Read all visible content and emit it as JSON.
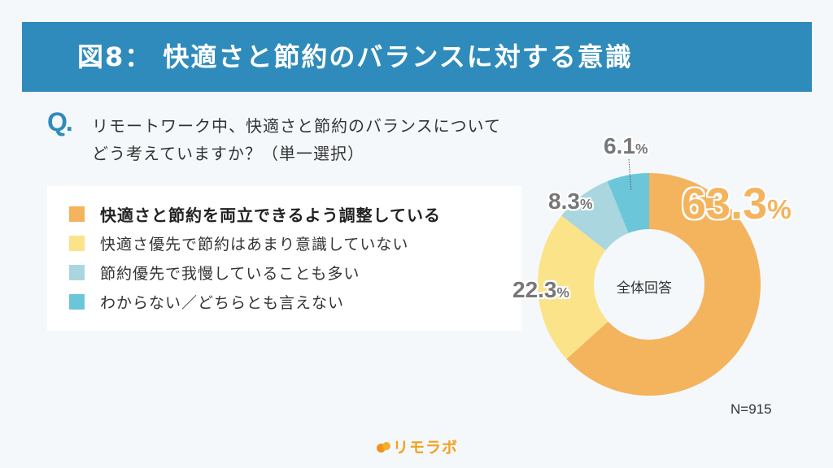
{
  "header": {
    "title": "図8： 快適さと節約のバランスに対する意識"
  },
  "question": {
    "mark": "Q.",
    "line1": "リモートワーク中、快適さと節約のバランスについて",
    "line2": "どう考えていますか？（単一選択）"
  },
  "legend": {
    "items": [
      {
        "label": "快適さと節約を両立できるよう調整している",
        "color": "#f4b35d"
      },
      {
        "label": "快適さ優先で節約はあまり意識していない",
        "color": "#fbe38a"
      },
      {
        "label": "節約優先で我慢していることも多い",
        "color": "#a9d6df"
      },
      {
        "label": "わからない／どちらとも言えない",
        "color": "#6cc6d9"
      }
    ]
  },
  "chart_data": {
    "type": "pie",
    "variant": "donut",
    "title": "図8： 快適さと節約のバランスに対する意識",
    "center_label": "全体回答",
    "n": "N=915",
    "categories": [
      "快適さと節約を両立できるよう調整している",
      "快適さ優先で節約はあまり意識していない",
      "節約優先で我慢していることも多い",
      "わからない／どちらとも言えない"
    ],
    "values": [
      63.3,
      22.3,
      8.3,
      6.1
    ],
    "labels": [
      "63.3",
      "22.3",
      "8.3",
      "6.1"
    ],
    "unit": "%",
    "colors": [
      "#f4b35d",
      "#fbe38a",
      "#a9d6df",
      "#6cc6d9"
    ],
    "start_angle": "12 o'clock, clockwise",
    "legend_position": "left"
  },
  "chart": {
    "center_label": "全体回答",
    "n_label": "N=915",
    "unit": "%",
    "pct_63": "63.3",
    "pct_22": "22.3",
    "pct_8": "8.3",
    "pct_6": "6.1"
  },
  "brand": {
    "name": "リモラボ",
    "color": "#f0a21e"
  }
}
